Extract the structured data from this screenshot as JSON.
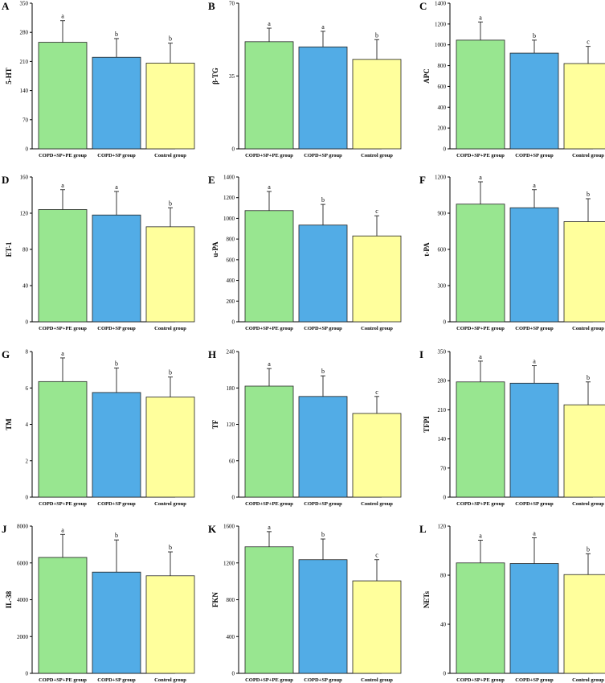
{
  "figure": {
    "categories": [
      "COPD+SP+PE group",
      "COPD+SP group",
      "Control group"
    ],
    "colors": {
      "green": "#98e690",
      "blue": "#52ace6",
      "yellow": "#ffff9c",
      "axis": "#000000"
    }
  },
  "chart_data": [
    {
      "panel": "A",
      "type": "bar",
      "ylabel": "5-HT",
      "ylim": [
        0,
        350
      ],
      "ticks": [
        0,
        70,
        140,
        210,
        280,
        350
      ],
      "categories": [
        "COPD+SP+PE group",
        "COPD+SP group",
        "Control group"
      ],
      "values": [
        256,
        220,
        206
      ],
      "errors": [
        52,
        45,
        48
      ],
      "letters": [
        "a",
        "b",
        "b"
      ]
    },
    {
      "panel": "B",
      "type": "bar",
      "ylabel": "β-TG",
      "ylim": [
        0,
        70
      ],
      "ticks": [
        0,
        35,
        70
      ],
      "categories": [
        "COPD+SP+PE group",
        "COPD+SP group",
        "Control group"
      ],
      "values": [
        51.5,
        49,
        43
      ],
      "errors": [
        6.5,
        7.5,
        9.5
      ],
      "letters": [
        "a",
        "a",
        "b"
      ]
    },
    {
      "panel": "C",
      "type": "bar",
      "ylabel": "APC",
      "ylim": [
        0,
        1400
      ],
      "ticks": [
        0,
        200,
        400,
        600,
        800,
        1000,
        1200,
        1400
      ],
      "categories": [
        "COPD+SP+PE group",
        "COPD+SP group",
        "Control group"
      ],
      "values": [
        1045,
        920,
        820
      ],
      "errors": [
        175,
        125,
        165
      ],
      "letters": [
        "a",
        "b",
        "c"
      ]
    },
    {
      "panel": "D",
      "type": "bar",
      "ylabel": "ET-1",
      "ylim": [
        0,
        160
      ],
      "ticks": [
        0,
        40,
        80,
        120,
        160
      ],
      "categories": [
        "COPD+SP+PE group",
        "COPD+SP group",
        "Control group"
      ],
      "values": [
        124,
        118,
        105
      ],
      "errors": [
        22,
        26,
        21
      ],
      "letters": [
        "a",
        "a",
        "b"
      ]
    },
    {
      "panel": "E",
      "type": "bar",
      "ylabel": "u-PA",
      "ylim": [
        0,
        1400
      ],
      "ticks": [
        0,
        200,
        400,
        600,
        800,
        1000,
        1200,
        1400
      ],
      "categories": [
        "COPD+SP+PE group",
        "COPD+SP group",
        "Control group"
      ],
      "values": [
        1075,
        935,
        830
      ],
      "errors": [
        185,
        200,
        195
      ],
      "letters": [
        "a",
        "b",
        "c"
      ]
    },
    {
      "panel": "F",
      "type": "bar",
      "ylabel": "t-PA",
      "ylim": [
        0,
        1200
      ],
      "ticks": [
        0,
        300,
        600,
        900,
        1200
      ],
      "categories": [
        "COPD+SP+PE group",
        "COPD+SP group",
        "Control group"
      ],
      "values": [
        975,
        945,
        830
      ],
      "errors": [
        185,
        150,
        190
      ],
      "letters": [
        "a",
        "a",
        "b"
      ]
    },
    {
      "panel": "G",
      "type": "bar",
      "ylabel": "TM",
      "ylim": [
        0,
        8
      ],
      "ticks": [
        0,
        2,
        4,
        6,
        8
      ],
      "categories": [
        "COPD+SP+PE group",
        "COPD+SP group",
        "Control group"
      ],
      "values": [
        6.35,
        5.75,
        5.5
      ],
      "errors": [
        1.3,
        1.35,
        1.1
      ],
      "letters": [
        "a",
        "b",
        "b"
      ]
    },
    {
      "panel": "H",
      "type": "bar",
      "ylabel": "TF",
      "ylim": [
        0,
        240
      ],
      "ticks": [
        0,
        60,
        120,
        180,
        240
      ],
      "categories": [
        "COPD+SP+PE group",
        "COPD+SP group",
        "Control group"
      ],
      "values": [
        183,
        166,
        138
      ],
      "errors": [
        29,
        34,
        28
      ],
      "letters": [
        "a",
        "b",
        "c"
      ]
    },
    {
      "panel": "I",
      "type": "bar",
      "ylabel": "TFPI",
      "ylim": [
        0,
        350
      ],
      "ticks": [
        0,
        70,
        140,
        210,
        280,
        350
      ],
      "categories": [
        "COPD+SP+PE group",
        "COPD+SP group",
        "Control group"
      ],
      "values": [
        277,
        274,
        222
      ],
      "errors": [
        50,
        42,
        55
      ],
      "letters": [
        "a",
        "a",
        "b"
      ]
    },
    {
      "panel": "J",
      "type": "bar",
      "ylabel": "IL-38",
      "ylim": [
        0,
        8000
      ],
      "ticks": [
        0,
        2000,
        4000,
        6000,
        8000
      ],
      "categories": [
        "COPD+SP+PE group",
        "COPD+SP group",
        "Control group"
      ],
      "values": [
        6300,
        5500,
        5300
      ],
      "errors": [
        1250,
        1750,
        1300
      ],
      "letters": [
        "a",
        "b",
        "b"
      ]
    },
    {
      "panel": "K",
      "type": "bar",
      "ylabel": "FKN",
      "ylim": [
        0,
        1600
      ],
      "ticks": [
        0,
        400,
        800,
        1200,
        1600
      ],
      "categories": [
        "COPD+SP+PE group",
        "COPD+SP group",
        "Control group"
      ],
      "values": [
        1375,
        1235,
        1005
      ],
      "errors": [
        165,
        225,
        230
      ],
      "letters": [
        "a",
        "b",
        "c"
      ]
    },
    {
      "panel": "L",
      "type": "bar",
      "ylabel": "NETs",
      "ylim": [
        0,
        120
      ],
      "ticks": [
        0,
        40,
        80,
        120
      ],
      "categories": [
        "COPD+SP+PE group",
        "COPD+SP group",
        "Control group"
      ],
      "values": [
        90,
        89.5,
        80.5
      ],
      "errors": [
        18.5,
        21,
        17
      ],
      "letters": [
        "a",
        "a",
        "b"
      ]
    }
  ]
}
